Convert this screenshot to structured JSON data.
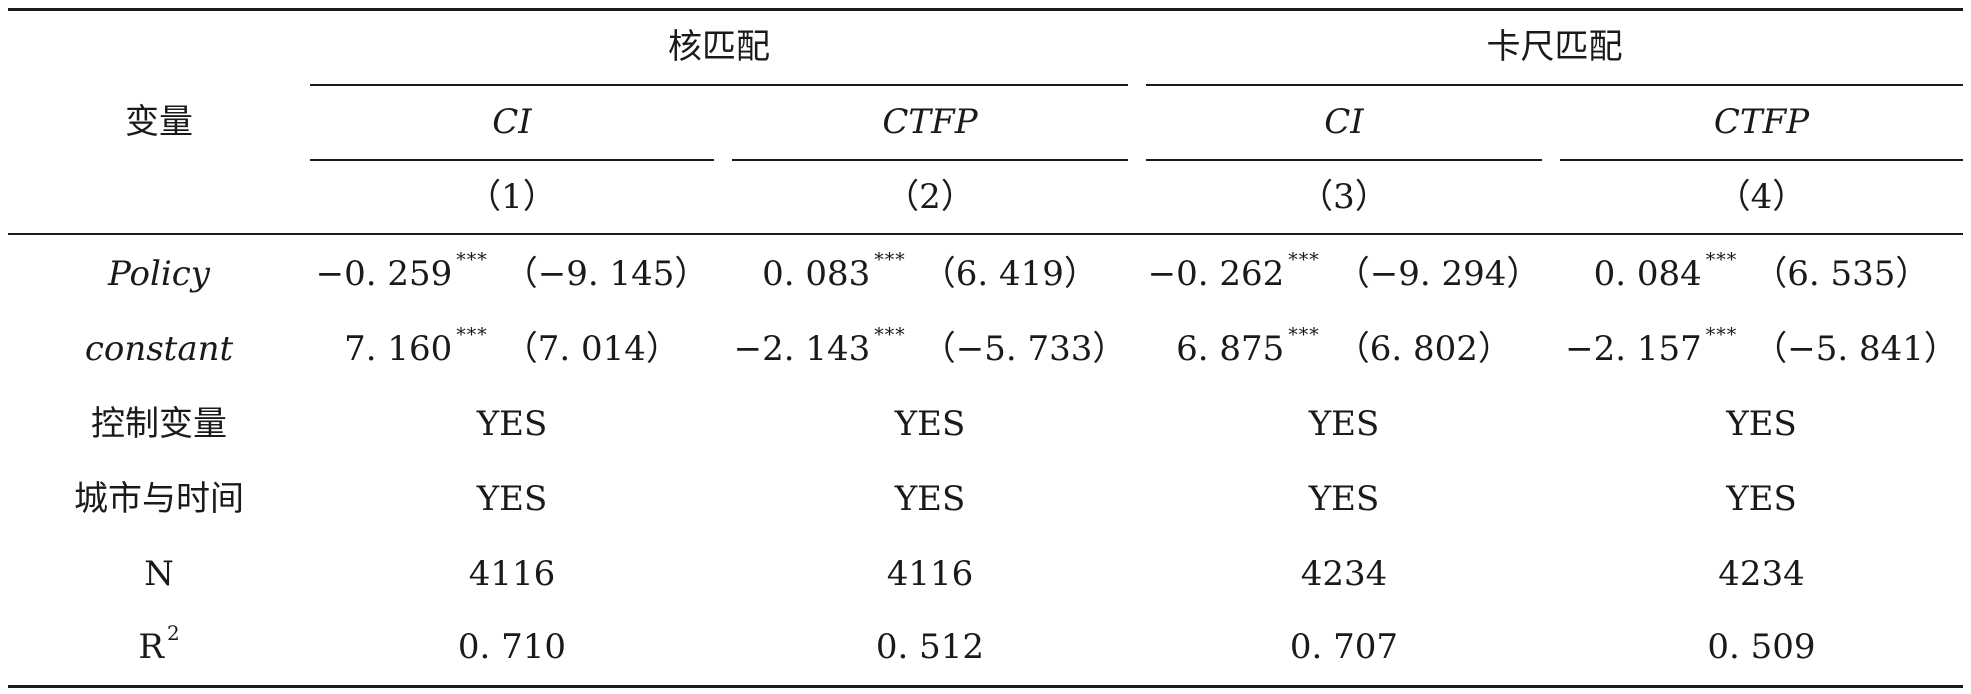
{
  "table": {
    "header": {
      "variable_label": "变量",
      "groups": [
        {
          "label": "核匹配"
        },
        {
          "label": "卡尺匹配"
        }
      ],
      "dep_vars": [
        "CI",
        "CTFP",
        "CI",
        "CTFP"
      ],
      "col_numbers": [
        "（1）",
        "（2）",
        "（3）",
        "（4）"
      ]
    },
    "rows": [
      {
        "label": "Policy",
        "cells": [
          {
            "coef": "−0. 259",
            "stars": "***",
            "t": "（−9. 145）"
          },
          {
            "coef": "0. 083",
            "stars": "***",
            "t": "（6. 419）"
          },
          {
            "coef": "−0. 262",
            "stars": "***",
            "t": "（−9. 294）"
          },
          {
            "coef": "0. 084",
            "stars": "***",
            "t": "（6. 535）"
          }
        ]
      },
      {
        "label": "constant",
        "cells": [
          {
            "coef": "7. 160",
            "stars": "***",
            "t": "（7. 014）"
          },
          {
            "coef": "−2. 143",
            "stars": "***",
            "t": "（−5. 733）"
          },
          {
            "coef": "6. 875",
            "stars": "***",
            "t": "（6. 802）"
          },
          {
            "coef": "−2. 157",
            "stars": "***",
            "t": "（−5. 841）"
          }
        ]
      },
      {
        "label": "控制变量",
        "cells": [
          {
            "value": "YES"
          },
          {
            "value": "YES"
          },
          {
            "value": "YES"
          },
          {
            "value": "YES"
          }
        ]
      },
      {
        "label": "城市与时间",
        "cells": [
          {
            "value": "YES"
          },
          {
            "value": "YES"
          },
          {
            "value": "YES"
          },
          {
            "value": "YES"
          }
        ]
      },
      {
        "label": "N",
        "cells": [
          {
            "value": "4116"
          },
          {
            "value": "4116"
          },
          {
            "value": "4234"
          },
          {
            "value": "4234"
          }
        ]
      },
      {
        "label": "R",
        "label_sup": "2",
        "cells": [
          {
            "value": "0. 710"
          },
          {
            "value": "0. 512"
          },
          {
            "value": "0. 707"
          },
          {
            "value": "0. 509"
          }
        ]
      }
    ]
  }
}
